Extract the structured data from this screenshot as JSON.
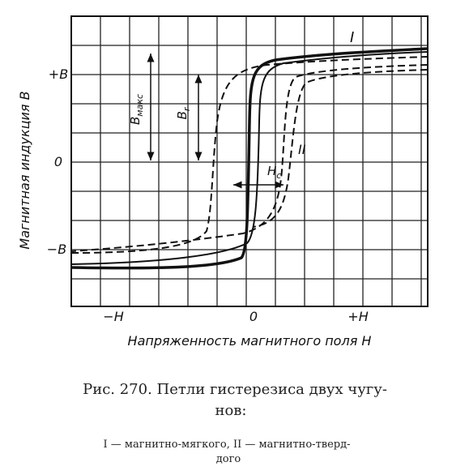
{
  "figure": {
    "y_axis_label": "Магнитная индукция B",
    "x_axis_label": "Напряженность магнитного поля H",
    "y_ticks": [
      "+B",
      "0",
      "−B"
    ],
    "x_ticks": [
      "−H",
      "0",
      "+H"
    ],
    "curve_labels": [
      "I",
      "II"
    ],
    "b_max": {
      "symbol": "B",
      "subscript": "макс"
    },
    "b_r": {
      "symbol": "B",
      "subscript": "r"
    },
    "h_c": {
      "symbol": "H",
      "subscript": "c"
    }
  },
  "caption": {
    "line1": "Рис. 270. Петли гистерезиса двух чугу-",
    "line2": "нов:",
    "line3": "I — магнитно-мягкого,   II — магнитно-тверд-",
    "line4": "дого"
  }
}
